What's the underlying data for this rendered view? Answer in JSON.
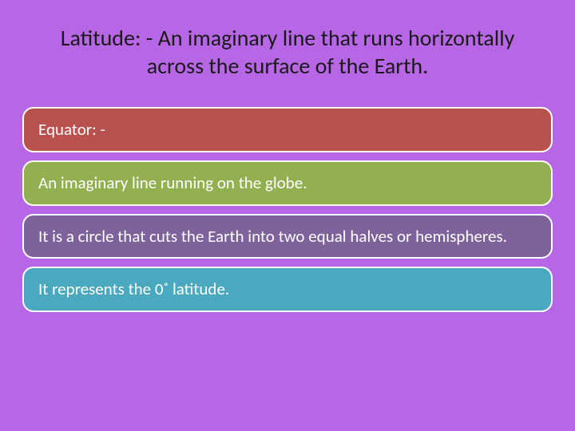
{
  "slide": {
    "background_color": "#b766e6",
    "title": {
      "text": "Latitude: - An imaginary line that runs horizontally across the surface of the Earth.",
      "color": "#1a1a1a",
      "fontsize": 28
    },
    "cards": {
      "fontsize": 21,
      "text_color": "#ffffff",
      "border_color": "#ffffff",
      "border_radius": 14,
      "items": [
        {
          "text": "Equator: -",
          "bg_color": "#b9524f"
        },
        {
          "text": "An imaginary line running on the globe.",
          "bg_color": "#93b050"
        },
        {
          "text": "It is a circle that cuts the Earth into two equal halves or hemispheres.",
          "bg_color": "#7e629c"
        },
        {
          "text": "It represents the 0˚ latitude.",
          "bg_color": "#4aa8bf"
        }
      ]
    }
  }
}
